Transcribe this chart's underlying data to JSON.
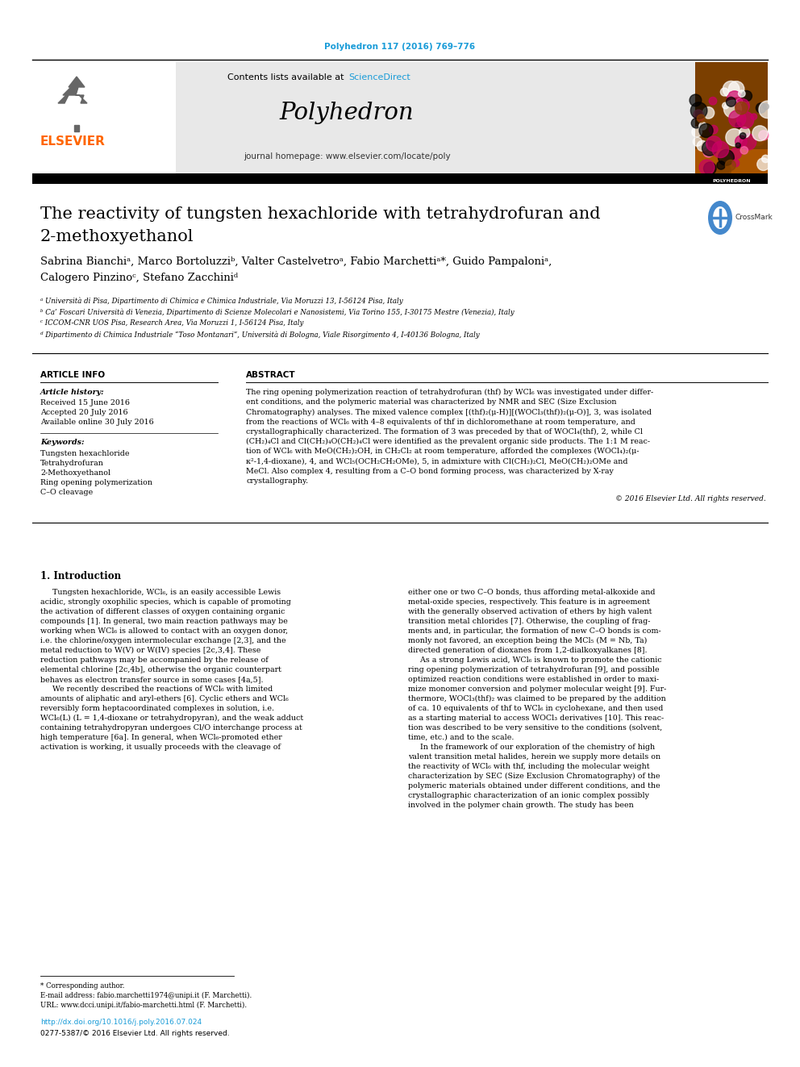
{
  "journal_ref": "Polyhedron 117 (2016) 769–776",
  "journal_name": "Polyhedron",
  "journal_homepage": "journal homepage: www.elsevier.com/locate/poly",
  "contents_note": "Contents lists available at ",
  "sciencedirect": "ScienceDirect",
  "title_line1": "The reactivity of tungsten hexachloride with tetrahydrofuran and",
  "title_line2": "2-methoxyethanol",
  "authors_line1": "Sabrina Bianchiᵃ, Marco Bortoluzziᵇ, Valter Castelvetroᵃ, Fabio Marchettiᵃ*, Guido Pampaloniᵃ,",
  "authors_line2": "Calogero Pinzinoᶜ, Stefano Zacchiniᵈ",
  "affil_a": "ᵃ Università di Pisa, Dipartimento di Chimica e Chimica Industriale, Via Moruzzi 13, I-56124 Pisa, Italy",
  "affil_b": "ᵇ Ca’ Foscari Università di Venezia, Dipartimento di Scienze Molecolari e Nanosistemi, Via Torino 155, I-30175 Mestre (Venezia), Italy",
  "affil_c": "ᶜ ICCOM-CNR UOS Pisa, Research Area, Via Moruzzi 1, I-56124 Pisa, Italy",
  "affil_d": "ᵈ Dipartimento di Chimica Industriale “Toso Montanari”, Università di Bologna, Viale Risorgimento 4, I-40136 Bologna, Italy",
  "article_info_title": "ARTICLE INFO",
  "article_history_label": "Article history:",
  "received": "Received 15 June 2016",
  "accepted": "Accepted 20 July 2016",
  "available": "Available online 30 July 2016",
  "keywords_label": "Keywords:",
  "keywords": [
    "Tungsten hexachloride",
    "Tetrahydrofuran",
    "2-Methoxyethanol",
    "Ring opening polymerization",
    "C–O cleavage"
  ],
  "abstract_title": "ABSTRACT",
  "abstract_lines": [
    "The ring opening polymerization reaction of tetrahydrofuran (thf) by WCl₆ was investigated under differ-",
    "ent conditions, and the polymeric material was characterized by NMR and SEC (Size Exclusion",
    "Chromatography) analyses. The mixed valence complex [(thf)₂(μ-H)][(WOCl₃(thf))₂(μ-O)], 3, was isolated",
    "from the reactions of WCl₆ with 4–8 equivalents of thf in dichloromethane at room temperature, and",
    "crystallographically characterized. The formation of 3 was preceded by that of WOCl₄(thf), 2, while Cl",
    "(CH₂)₄Cl and Cl(CH₂)₄O(CH₂)₄Cl were identified as the prevalent organic side products. The 1:1 M reac-",
    "tion of WCl₆ with MeO(CH₂)₂OH, in CH₂Cl₂ at room temperature, afforded the complexes (WOCl₄)₂(μ-",
    "κ²-1,4-dioxane), 4, and WCl₅(OCH₂CH₂OMe), 5, in admixture with Cl(CH₂)₂Cl, MeO(CH₂)₂OMe and",
    "MeCl. Also complex 4, resulting from a C–O bond forming process, was characterized by X-ray",
    "crystallography."
  ],
  "copyright": "© 2016 Elsevier Ltd. All rights reserved.",
  "intro_title": "1. Introduction",
  "intro_left_lines": [
    "     Tungsten hexachloride, WCl₆, is an easily accessible Lewis",
    "acidic, strongly oxophilic species, which is capable of promoting",
    "the activation of different classes of oxygen containing organic",
    "compounds [1]. In general, two main reaction pathways may be",
    "working when WCl₆ is allowed to contact with an oxygen donor,",
    "i.e. the chlorine/oxygen intermolecular exchange [2,3], and the",
    "metal reduction to W(V) or W(IV) species [2c,3,4]. These",
    "reduction pathways may be accompanied by the release of",
    "elemental chlorine [2c,4b], otherwise the organic counterpart",
    "behaves as electron transfer source in some cases [4a,5].",
    "     We recently described the reactions of WCl₆ with limited",
    "amounts of aliphatic and aryl-ethers [6]. Cyclic ethers and WCl₆",
    "reversibly form heptacoordinated complexes in solution, i.e.",
    "WCl₆(L) (L = 1,4-dioxane or tetrahydropyran), and the weak adduct",
    "containing tetrahydropyran undergoes Cl/O interchange process at",
    "high temperature [6a]. In general, when WCl₆-promoted ether",
    "activation is working, it usually proceeds with the cleavage of"
  ],
  "intro_right_lines": [
    "either one or two C–O bonds, thus affording metal-alkoxide and",
    "metal-oxide species, respectively. This feature is in agreement",
    "with the generally observed activation of ethers by high valent",
    "transition metal chlorides [7]. Otherwise, the coupling of frag-",
    "ments and, in particular, the formation of new C–O bonds is com-",
    "monly not favored, an exception being the MCl₅ (M = Nb, Ta)",
    "directed generation of dioxanes from 1,2-dialkoxyalkanes [8].",
    "     As a strong Lewis acid, WCl₆ is known to promote the cationic",
    "ring opening polymerization of tetrahydrofuran [9], and possible",
    "optimized reaction conditions were established in order to maxi-",
    "mize monomer conversion and polymer molecular weight [9]. Fur-",
    "thermore, WOCl₃(thf)₂ was claimed to be prepared by the addition",
    "of ca. 10 equivalents of thf to WCl₆ in cyclohexane, and then used",
    "as a starting material to access WOCl₃ derivatives [10]. This reac-",
    "tion was described to be very sensitive to the conditions (solvent,",
    "time, etc.) and to the scale.",
    "     In the framework of our exploration of the chemistry of high",
    "valent transition metal halides, herein we supply more details on",
    "the reactivity of WCl₆ with thf, including the molecular weight",
    "characterization by SEC (Size Exclusion Chromatography) of the",
    "polymeric materials obtained under different conditions, and the",
    "crystallographic characterization of an ionic complex possibly",
    "involved in the polymer chain growth. The study has been"
  ],
  "footnote_star": "* Corresponding author.",
  "footnote_email": "E-mail address: fabio.marchetti1974@unipi.it (F. Marchetti).",
  "footnote_url": "URL: www.dcci.unipi.it/fabio-marchetti.html (F. Marchetti).",
  "doi": "http://dx.doi.org/10.1016/j.poly.2016.07.024",
  "issn": "0277-5387/© 2016 Elsevier Ltd. All rights reserved.",
  "elsevier_color": "#FF6600",
  "sciencedirect_color": "#1A9CD8",
  "journal_ref_color": "#1A9CD8",
  "header_bg": "#E8E8E8",
  "bg_color": "#FFFFFF"
}
